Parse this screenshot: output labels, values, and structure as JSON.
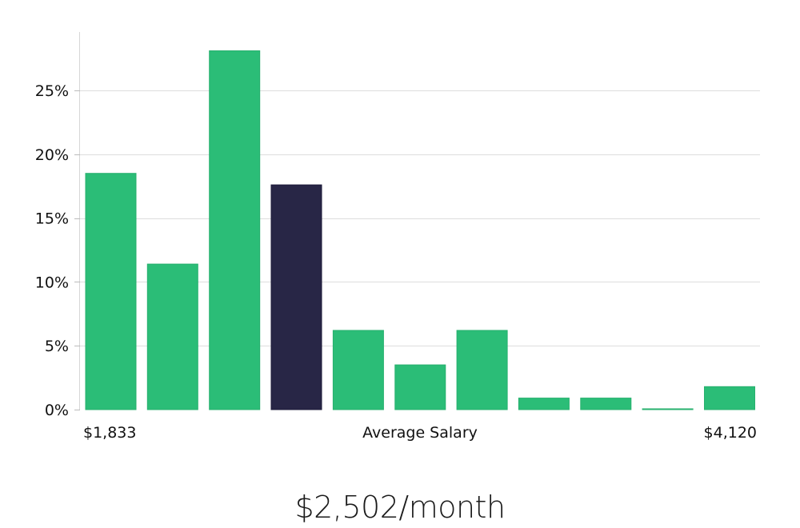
{
  "chart_data": {
    "type": "bar",
    "categories": [
      "",
      "",
      "",
      "",
      "",
      "",
      "",
      "",
      "",
      "",
      ""
    ],
    "values": [
      18.5,
      11.4,
      28.1,
      17.6,
      6.2,
      3.5,
      6.2,
      0.9,
      0.9,
      0.05,
      1.8
    ],
    "highlight_index": 3,
    "xlabel": "Average Salary",
    "x_min_label": "$1,833",
    "x_max_label": "$4,120",
    "ylim": [
      0,
      29.5
    ],
    "yticks": [
      0,
      5,
      10,
      15,
      20,
      25
    ],
    "ytick_labels": [
      "0%",
      "5%",
      "10%",
      "15%",
      "20%",
      "25%"
    ],
    "grid": true,
    "colors": {
      "bar": "#2bbd77",
      "highlight": "#282646",
      "grid": "#dddddd",
      "axis": "#d6d6d6"
    }
  },
  "footer": {
    "average_salary": "$2,502/month"
  }
}
